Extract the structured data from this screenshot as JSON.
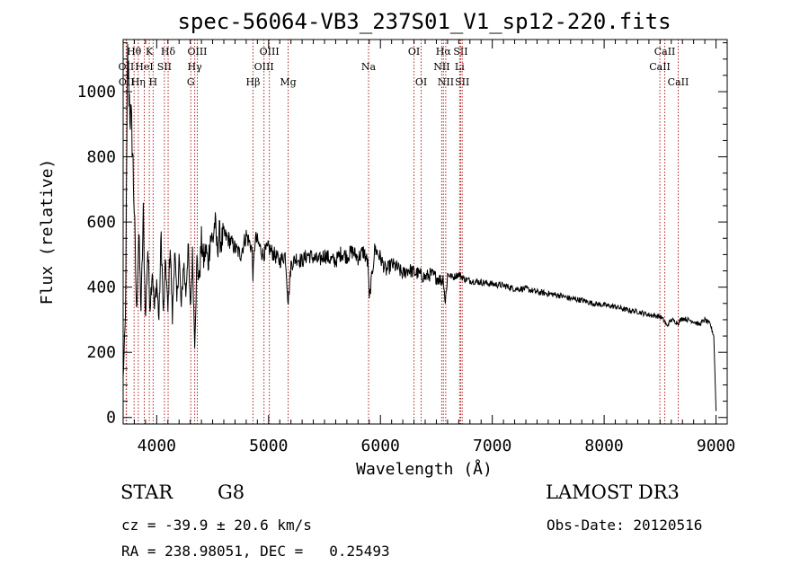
{
  "chart_data": {
    "type": "line",
    "title": "spec-56064-VB3_237S01_V1_sp12-220.fits",
    "xlabel": "Wavelength (Å)",
    "ylabel": "Flux (relative)",
    "xlim": [
      3700,
      9100
    ],
    "ylim": [
      -20,
      1160
    ],
    "x_ticks": [
      4000,
      5000,
      6000,
      7000,
      8000,
      9000
    ],
    "y_ticks": [
      0,
      200,
      400,
      600,
      800,
      1000
    ],
    "grid": false,
    "line_color": "#000000",
    "marker_color": "#b22222",
    "spectrum": {
      "name": "flux",
      "x": [
        3700,
        3720,
        3740,
        3760,
        3780,
        3800,
        3820,
        3840,
        3860,
        3880,
        3900,
        3920,
        3940,
        3960,
        3980,
        4000,
        4020,
        4040,
        4060,
        4080,
        4100,
        4120,
        4140,
        4160,
        4180,
        4200,
        4220,
        4240,
        4260,
        4280,
        4300,
        4320,
        4340,
        4360,
        4380,
        4400,
        4420,
        4440,
        4460,
        4480,
        4500,
        4520,
        4540,
        4560,
        4580,
        4600,
        4650,
        4700,
        4750,
        4800,
        4850,
        4861,
        4880,
        4900,
        4950,
        5000,
        5050,
        5100,
        5150,
        5175,
        5200,
        5250,
        5300,
        5350,
        5400,
        5450,
        5500,
        5550,
        5600,
        5650,
        5700,
        5750,
        5800,
        5850,
        5890,
        5900,
        5950,
        6000,
        6050,
        6100,
        6150,
        6200,
        6250,
        6300,
        6350,
        6400,
        6450,
        6500,
        6550,
        6563,
        6580,
        6600,
        6650,
        6700,
        6750,
        6800,
        6900,
        7000,
        7100,
        7200,
        7300,
        7400,
        7500,
        7600,
        7700,
        7800,
        7900,
        8000,
        8100,
        8200,
        8300,
        8400,
        8500,
        8542,
        8560,
        8600,
        8662,
        8700,
        8750,
        8800,
        8850,
        8900,
        8950,
        8980,
        9000
      ],
      "values": [
        120,
        300,
        1100,
        950,
        860,
        640,
        320,
        560,
        330,
        620,
        300,
        520,
        340,
        460,
        330,
        420,
        300,
        560,
        310,
        480,
        320,
        540,
        300,
        520,
        350,
        500,
        330,
        480,
        380,
        530,
        330,
        490,
        230,
        480,
        420,
        540,
        480,
        520,
        470,
        560,
        540,
        600,
        520,
        560,
        540,
        560,
        545,
        520,
        500,
        560,
        520,
        430,
        550,
        540,
        500,
        520,
        500,
        480,
        500,
        350,
        470,
        490,
        480,
        500,
        490,
        480,
        500,
        485,
        480,
        505,
        495,
        510,
        490,
        510,
        470,
        360,
        520,
        490,
        450,
        470,
        460,
        440,
        455,
        445,
        440,
        430,
        440,
        430,
        420,
        430,
        350,
        440,
        430,
        440,
        425,
        420,
        415,
        410,
        405,
        395,
        395,
        385,
        380,
        375,
        365,
        360,
        350,
        345,
        340,
        330,
        325,
        315,
        310,
        295,
        280,
        300,
        290,
        305,
        300,
        295,
        285,
        300,
        285,
        250,
        20
      ]
    },
    "spectral_lines": [
      {
        "label": "Hθ",
        "wavelength": 3798,
        "row": 1
      },
      {
        "label": "OII",
        "wavelength": 3727,
        "row": 2
      },
      {
        "label": "OII",
        "wavelength": 3730,
        "row": 3
      },
      {
        "label": "K",
        "wavelength": 3934,
        "row": 1
      },
      {
        "label": "HeI",
        "wavelength": 3889,
        "row": 2
      },
      {
        "label": "Hη",
        "wavelength": 3835,
        "row": 3
      },
      {
        "label": "SII",
        "wavelength": 4069,
        "row": 2
      },
      {
        "label": "H",
        "wavelength": 3968,
        "row": 3
      },
      {
        "label": "Hδ",
        "wavelength": 4102,
        "row": 1
      },
      {
        "label": "OIII",
        "wavelength": 4363,
        "row": 1
      },
      {
        "label": "Hγ",
        "wavelength": 4340,
        "row": 2
      },
      {
        "label": "G",
        "wavelength": 4305,
        "row": 3
      },
      {
        "label": "OIII",
        "wavelength": 5007,
        "row": 1
      },
      {
        "label": "OIII",
        "wavelength": 4959,
        "row": 2
      },
      {
        "label": "Hβ",
        "wavelength": 4861,
        "row": 3
      },
      {
        "label": "Mg",
        "wavelength": 5175,
        "row": 3
      },
      {
        "label": "Na",
        "wavelength": 5894,
        "row": 2
      },
      {
        "label": "OI",
        "wavelength": 6300,
        "row": 1
      },
      {
        "label": "OI",
        "wavelength": 6364,
        "row": 3
      },
      {
        "label": "Hα",
        "wavelength": 6563,
        "row": 1
      },
      {
        "label": "NII",
        "wavelength": 6548,
        "row": 2
      },
      {
        "label": "NII",
        "wavelength": 6584,
        "row": 3
      },
      {
        "label": "SII",
        "wavelength": 6717,
        "row": 1
      },
      {
        "label": "Li",
        "wavelength": 6708,
        "row": 2
      },
      {
        "label": "SII",
        "wavelength": 6731,
        "row": 3
      },
      {
        "label": "CaII",
        "wavelength": 8542,
        "row": 1
      },
      {
        "label": "CaII",
        "wavelength": 8498,
        "row": 2
      },
      {
        "label": "CaII",
        "wavelength": 8662,
        "row": 3
      }
    ]
  },
  "info": {
    "object_class": "STAR",
    "subclass": "G8",
    "survey": "LAMOST DR3",
    "redshift_text": "cz = -39.9 ± 20.6 km/s",
    "obs_date": "Obs-Date: 20120516",
    "coords": "RA = 238.98051, DEC =   0.25493"
  }
}
